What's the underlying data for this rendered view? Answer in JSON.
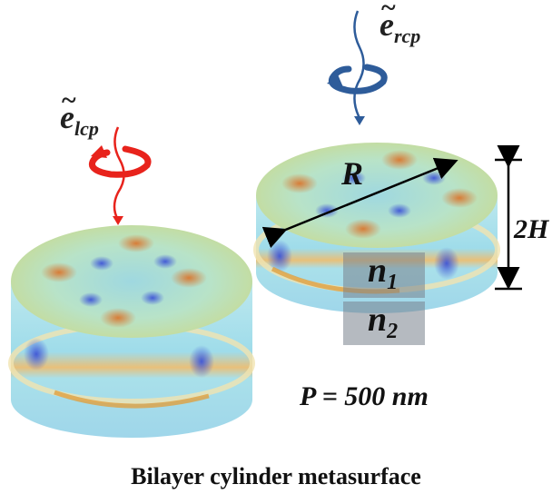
{
  "labels": {
    "e_lcp_base": "e",
    "e_lcp_sub": "lcp",
    "e_rcp_base": "e",
    "e_rcp_sub": "rcp",
    "tilde": "~",
    "radius": "R",
    "height": "2H",
    "n1_base": "n",
    "n1_sub": "1",
    "n2_base": "n",
    "n2_sub": "2",
    "period": "P = 500 nm"
  },
  "caption": "Bilayer cylinder metasurface",
  "colors": {
    "lcp_arrow": "#e8231c",
    "rcp_arrow": "#2e5c9a",
    "field_low": "#4a5fd6",
    "field_mid": "#a8e0e4",
    "field_high": "#d9803a"
  }
}
